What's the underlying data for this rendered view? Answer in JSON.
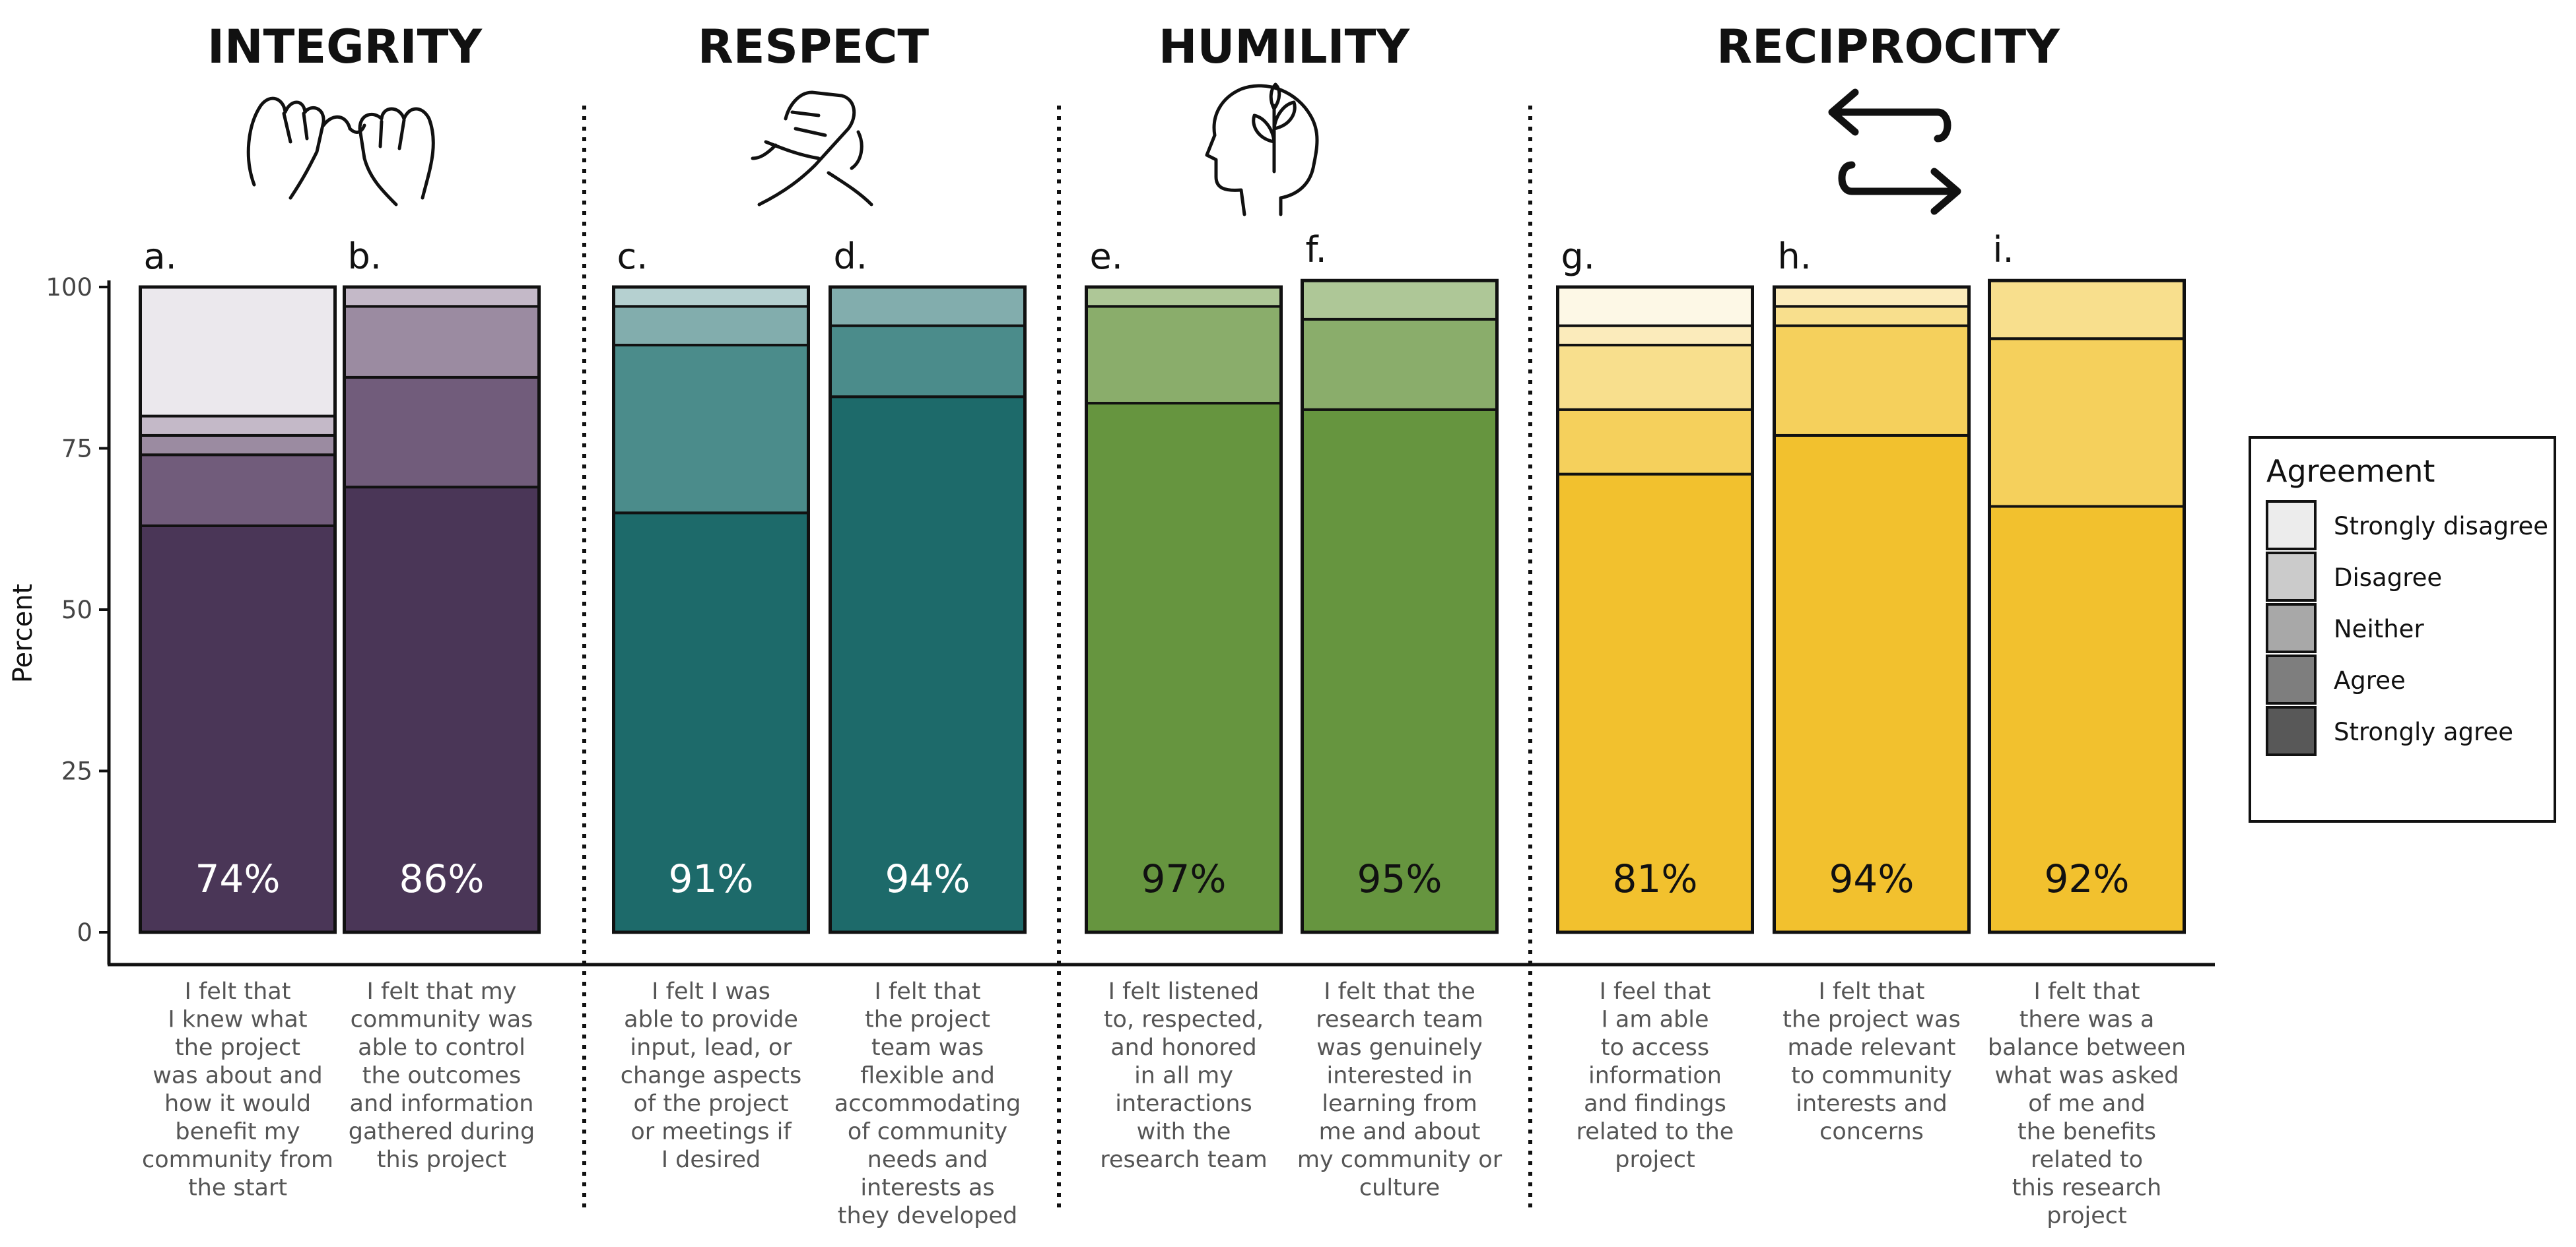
{
  "chart_data": {
    "type": "stacked-bar",
    "ylabel": "Percent",
    "ylim": [
      0,
      100
    ],
    "yticks": [
      0,
      25,
      50,
      75,
      100
    ],
    "legend": {
      "title": "Agreement",
      "entries": [
        "Strongly disagree",
        "Disagree",
        "Neither",
        "Agree",
        "Strongly agree"
      ],
      "swatches": [
        "#ececec",
        "#cbcbcb",
        "#a8a8a8",
        "#7e7e7e",
        "#585858"
      ]
    },
    "categories_stack_order": [
      "Strongly agree",
      "Agree",
      "Neither",
      "Disagree",
      "Strongly disagree"
    ],
    "groups": [
      {
        "title": "INTEGRITY",
        "icon": "pinky-promise-icon",
        "colors": [
          "#4a3657",
          "#715c7b",
          "#9b8ba1",
          "#c4b9c8",
          "#ebe8ed"
        ],
        "bars": [
          {
            "panel": "a.",
            "percent_label": "74%",
            "label_color": "#ffffff",
            "values": [
              63,
              11,
              3,
              3,
              20
            ],
            "caption": [
              "I felt that",
              "I knew what",
              "the project",
              "was about and",
              "how it would",
              "benefit my",
              "community from",
              "the start"
            ]
          },
          {
            "panel": "b.",
            "percent_label": "86%",
            "label_color": "#ffffff",
            "values": [
              69,
              17,
              11,
              3,
              0
            ],
            "caption": [
              "I felt that my",
              "community was",
              "able to control",
              "the outcomes",
              "and information",
              "gathered during",
              "this project"
            ]
          }
        ]
      },
      {
        "title": "RESPECT",
        "icon": "handshake-icon",
        "colors": [
          "#1d6a6a",
          "#4b8c8b",
          "#82adad",
          "#b5d0d0",
          "#e3eeee"
        ],
        "bars": [
          {
            "panel": "c.",
            "percent_label": "91%",
            "label_color": "#ffffff",
            "values": [
              65,
              26,
              6,
              3,
              0
            ],
            "caption": [
              "I felt I was",
              "able to provide",
              "input, lead, or",
              "change aspects",
              "of the project",
              "or meetings if",
              "I desired"
            ]
          },
          {
            "panel": "d.",
            "percent_label": "94%",
            "label_color": "#ffffff",
            "values": [
              83,
              11,
              6,
              0,
              0
            ],
            "caption": [
              "I felt that",
              "the project",
              "team was",
              "flexible and",
              "accommodating",
              "of community",
              "needs and",
              "interests as",
              "they developed"
            ]
          }
        ]
      },
      {
        "title": "HUMILITY",
        "icon": "growth-head-icon",
        "colors": [
          "#66953f",
          "#8aad6b",
          "#aec797",
          "#cfdec0",
          "#ecf2e5"
        ],
        "bars": [
          {
            "panel": "e.",
            "percent_label": "97%",
            "label_color": "#111111",
            "values": [
              82,
              15,
              3,
              0,
              0
            ],
            "caption": [
              "I felt listened",
              "to, respected,",
              "and honored",
              "in all my",
              "interactions",
              "with the",
              "research team"
            ]
          },
          {
            "panel": "f.",
            "percent_label": "95%",
            "label_color": "#111111",
            "values": [
              81,
              14,
              6,
              0,
              0
            ],
            "caption": [
              "I felt that the",
              "research team",
              "was genuinely",
              "interested in",
              "learning from",
              "me and about",
              "my community or",
              "culture"
            ]
          }
        ]
      },
      {
        "title": "RECIPROCITY",
        "icon": "exchange-arrows-icon",
        "colors": [
          "#f2c12e",
          "#f5d05c",
          "#f8df8d",
          "#fbebbb",
          "#fdf8e6"
        ],
        "bars": [
          {
            "panel": "g.",
            "percent_label": "81%",
            "label_color": "#111111",
            "values": [
              71,
              10,
              10,
              3,
              6
            ],
            "caption": [
              "I feel that",
              "I am able",
              "to access",
              "information",
              "and findings",
              "related to the",
              "project"
            ]
          },
          {
            "panel": "h.",
            "percent_label": "94%",
            "label_color": "#111111",
            "values": [
              77,
              17,
              3,
              3,
              0
            ],
            "caption": [
              "I felt that",
              "the project was",
              "made relevant",
              "to community",
              "interests and",
              "concerns"
            ]
          },
          {
            "panel": "i.",
            "percent_label": "92%",
            "label_color": "#111111",
            "values": [
              66,
              26,
              9,
              0,
              0
            ],
            "caption": [
              "I felt that",
              "there was a",
              "balance between",
              "what was asked",
              "of me and",
              "the benefits",
              "related to",
              "this research",
              "project"
            ]
          }
        ]
      }
    ]
  }
}
